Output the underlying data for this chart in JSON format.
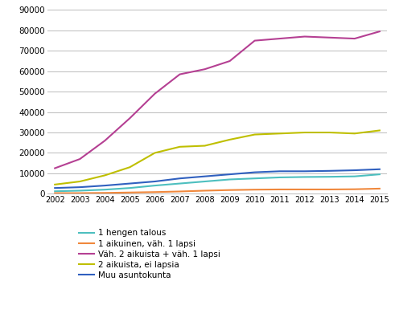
{
  "years": [
    2002,
    2003,
    2004,
    2005,
    2006,
    2007,
    2008,
    2009,
    2010,
    2011,
    2012,
    2013,
    2014,
    2015
  ],
  "series": {
    "1 hengen talous": [
      1200,
      1500,
      2000,
      2800,
      4000,
      5000,
      6000,
      7000,
      7500,
      8000,
      8200,
      8300,
      8500,
      9500
    ],
    "1 aikuinen, väh. 1 lapsi": [
      300,
      300,
      400,
      600,
      800,
      1100,
      1500,
      1800,
      2000,
      2100,
      2100,
      2100,
      2200,
      2500
    ],
    "Väh. 2 aikuista + väh. 1 lapsi": [
      12500,
      17000,
      26000,
      37000,
      49000,
      58500,
      61000,
      65000,
      75000,
      76000,
      77000,
      76500,
      76000,
      79500
    ],
    "2 aikuista, ei lapsia": [
      4500,
      6000,
      9000,
      13000,
      20000,
      23000,
      23500,
      26500,
      29000,
      29500,
      30000,
      30000,
      29500,
      31000
    ],
    "Muu asuntokunta": [
      2800,
      3200,
      4000,
      5000,
      6000,
      7500,
      8500,
      9500,
      10500,
      11000,
      11000,
      11200,
      11500,
      12000
    ]
  },
  "colors": {
    "1 hengen talous": "#4dbfbf",
    "1 aikuinen, väh. 1 lapsi": "#f0883c",
    "Väh. 2 aikuista + väh. 1 lapsi": "#b54093",
    "2 aikuista, ei lapsia": "#bfbf00",
    "Muu asuntokunta": "#3060bf"
  },
  "ylim": [
    0,
    90000
  ],
  "yticks": [
    0,
    10000,
    20000,
    30000,
    40000,
    50000,
    60000,
    70000,
    80000,
    90000
  ],
  "background_color": "#ffffff",
  "grid_color": "#bbbbbb",
  "legend_order": [
    "1 hengen talous",
    "1 aikuinen, väh. 1 lapsi",
    "Väh. 2 aikuista + väh. 1 lapsi",
    "2 aikuista, ei lapsia",
    "Muu asuntokunta"
  ]
}
